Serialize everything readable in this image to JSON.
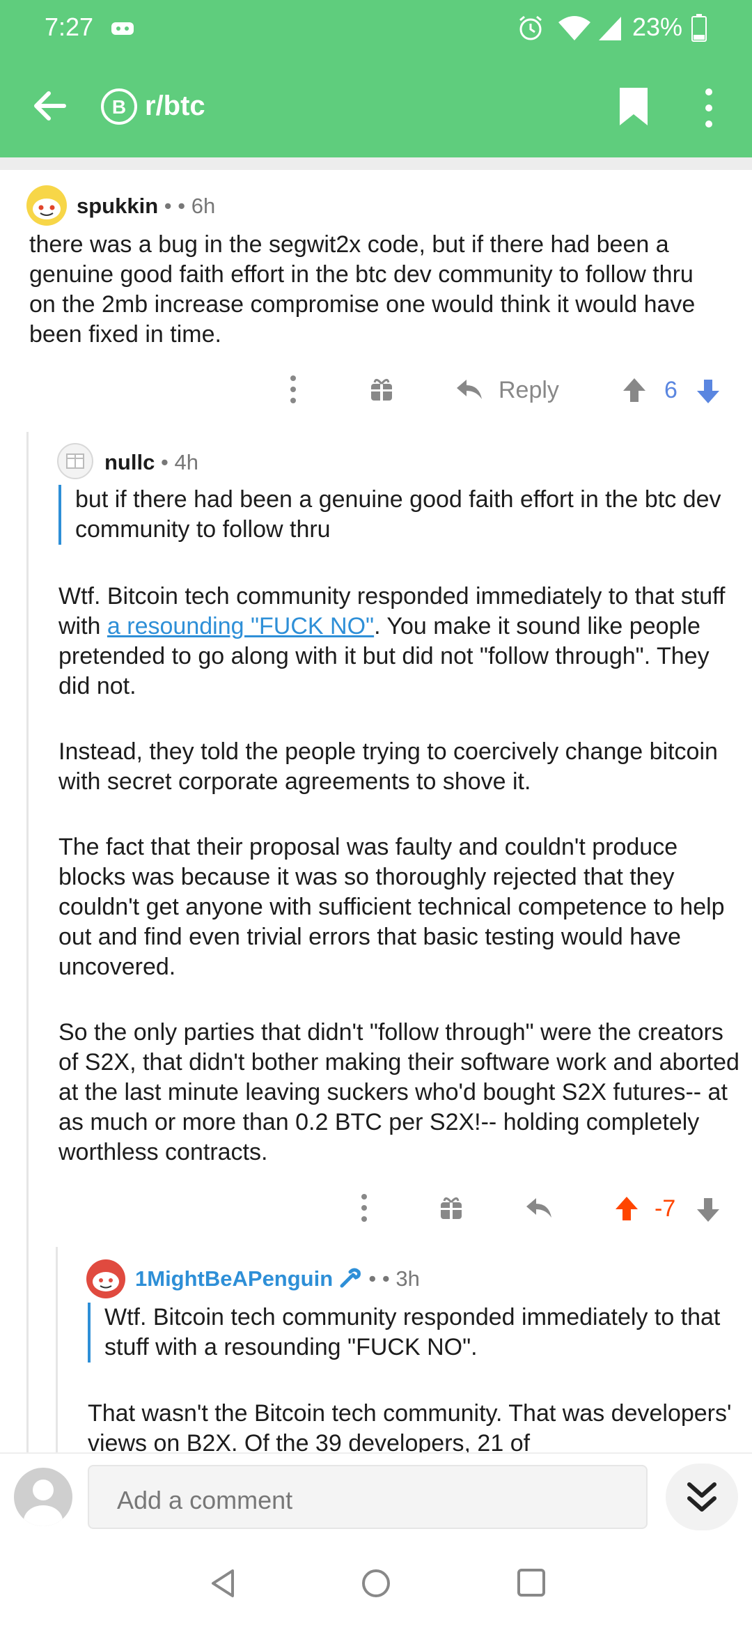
{
  "status_bar": {
    "time": "7:27",
    "battery": "23%"
  },
  "app_bar": {
    "subreddit": "r/btc"
  },
  "comments": [
    {
      "username": "spukkin",
      "sep": "•",
      "flair_dot": "•",
      "age": "6h",
      "body": "there was a bug in the segwit2x code, but if there had been a genuine good faith effort in the btc dev community to follow thru on the 2mb increase compromise one would think it would have been fixed in time.",
      "reply_label": "Reply",
      "score": "6",
      "score_color": "#5a86e0"
    },
    {
      "username": "nullc",
      "sep": "•",
      "age": "4h",
      "quote": "but if there had been a genuine good faith effort in the btc dev community to follow thru",
      "p1_before": "Wtf.   Bitcoin tech community responded immediately to that stuff with ",
      "p1_link": "a resounding \"FUCK NO\"",
      "p1_after": ".   You make it sound like people pretended to go along with it but did not \"follow through\". They did not.",
      "p2": "Instead, they told the people trying to coercively change bitcoin with secret corporate agreements to shove it.",
      "p3": "The fact that their proposal was faulty and couldn't produce blocks was because it was so thoroughly rejected that they couldn't get anyone with sufficient technical competence to help out and find even trivial errors that basic testing would have uncovered.",
      "p4": "So the only parties that didn't \"follow through\" were the creators of S2X, that didn't bother making their software work and aborted at the last minute leaving suckers who'd bought S2X futures-- at as much or more than 0.2 BTC per S2X!-- holding completely worthless contracts.",
      "score": "-7",
      "score_color": "#ff4500"
    },
    {
      "username": "1MightBeAPenguin",
      "sep": "•",
      "flair_dot": "•",
      "age": "3h",
      "quote": "Wtf. Bitcoin tech community responded immediately to that stuff with a resounding \"FUCK NO\".",
      "p1": "That wasn't the Bitcoin tech community. That was developers' views on B2X. Of the 39 developers, 21 of"
    }
  ],
  "comment_bar": {
    "placeholder": "Add a comment"
  },
  "icons": {
    "back": "arrow-left-icon",
    "bookmark": "bookmark-icon",
    "more": "more-vertical-icon",
    "upvote": "arrow-up-icon",
    "downvote": "arrow-down-icon",
    "gift": "gift-icon",
    "reply": "reply-icon"
  },
  "colors": {
    "app_bar": "#5fcd7d",
    "link": "#2e8fd7",
    "upvote_active": "#ff4500",
    "downvote_active": "#5a86e0"
  }
}
